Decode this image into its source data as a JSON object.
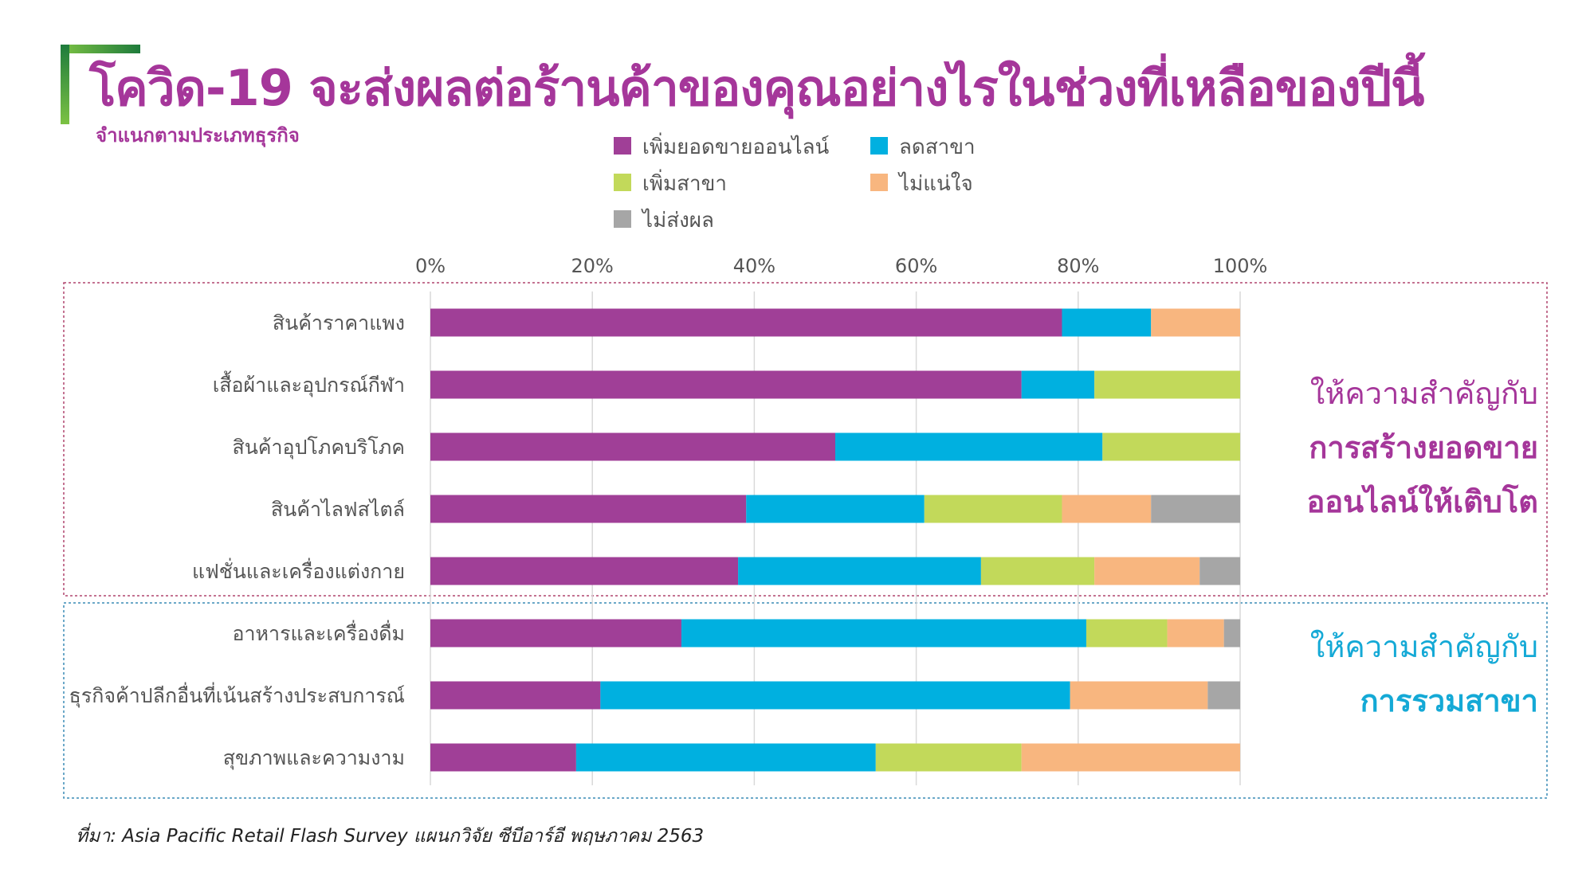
{
  "title": "โควิด-19 จะส่งผลต่อร้านค้าของคุณอย่างไรในช่วงที่เหลือของปีนี้",
  "subtitle": "จำแนกตามประเภทธุรกิจ",
  "source": "ที่มา: Asia Pacific Retail Flash Survey แผนกวิจัย ซีบีอาร์อี พฤษภาคม 2563",
  "side_notes": {
    "online": {
      "line1": "ให้ความสำคัญกับ",
      "line2": "การสร้างยอดขาย",
      "line3": "ออนไลน์ให้เติบโต"
    },
    "branch": {
      "line1": "ให้ความสำคัญกับ",
      "line2": "การรวมสาขา"
    }
  },
  "colors": {
    "title": "#a5369a",
    "online_group_border": "#b0456e",
    "branch_group_border": "#3a8bb5",
    "grid": "#d9d9d9"
  },
  "chart_data": {
    "type": "bar",
    "orientation": "horizontal",
    "stacked": true,
    "percent": true,
    "xlim": [
      0,
      100
    ],
    "x_ticks": [
      "0%",
      "20%",
      "40%",
      "60%",
      "80%",
      "100%"
    ],
    "grid": true,
    "legend_position": "top",
    "categories": [
      "สินค้าราคาแพง",
      "เสื้อผ้าและอุปกรณ์กีฬา",
      "สินค้าอุปโภคบริโภค",
      "สินค้าไลฟสไตล์",
      "แฟชั่นและเครื่องแต่งกาย",
      "อาหารและเครื่องดื่ม",
      "ธุรกิจค้าปลีกอื่นที่เน้นสร้างประสบการณ์",
      "สุขภาพและความงาม"
    ],
    "series": [
      {
        "name": "เพิ่มยอดขายออนไลน์",
        "color": "#a03f97",
        "values": [
          78,
          73,
          50,
          39,
          38,
          31,
          21,
          18
        ]
      },
      {
        "name": "ลดสาขา",
        "color": "#00b0e0",
        "values": [
          11,
          9,
          33,
          22,
          30,
          50,
          58,
          37
        ]
      },
      {
        "name": "เพิ่มสาขา",
        "color": "#c2d95a",
        "values": [
          0,
          18,
          17,
          17,
          14,
          10,
          0,
          18
        ]
      },
      {
        "name": "ไม่แน่ใจ",
        "color": "#f8b67f",
        "values": [
          11,
          0,
          0,
          11,
          13,
          7,
          17,
          27
        ]
      },
      {
        "name": "ไม่ส่งผล",
        "color": "#a6a6a6",
        "values": [
          0,
          0,
          0,
          11,
          5,
          2,
          4,
          0
        ]
      }
    ]
  }
}
